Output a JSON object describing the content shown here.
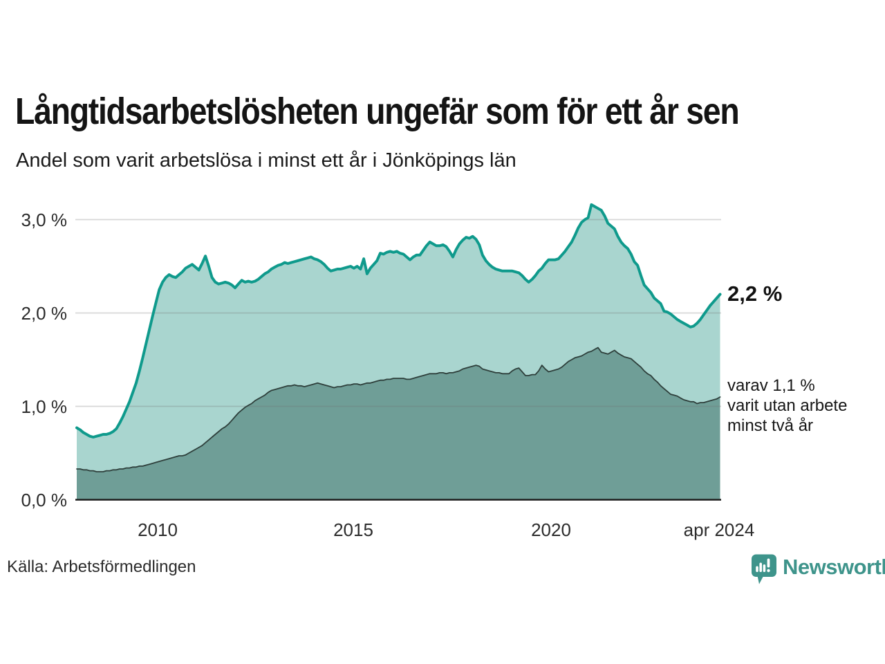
{
  "header": {
    "title": "Långtidsarbetslösheten ungefär som för ett år sen",
    "subtitle": "Andel som varit arbetslösa i minst ett år i Jönköpings län"
  },
  "axes": {
    "y_tick_labels": [
      "3,0 %",
      "2,0 %",
      "1,0 %",
      "0,0 %"
    ],
    "x_tick_labels": [
      "2010",
      "2015",
      "2020",
      "apr 2024"
    ]
  },
  "annotations": {
    "latest_total": "2,2 %",
    "two_year_line1": "varav 1,1 %",
    "two_year_line2": "varit utan arbete",
    "two_year_line3": "minst två år"
  },
  "footer": {
    "source": "Källa: Arbetsförmedlingen",
    "brand": "Newsworthy"
  },
  "colors": {
    "total_line": "#0f9a8c",
    "total_fill": "#a9d5cf",
    "two_year_line": "#2e3f3b",
    "two_year_fill": "#6f9e97",
    "grid_line": "rgba(110,110,110,0.28)",
    "axis_line": "#1f1f1f",
    "brand_teal": "#3e948b"
  },
  "chart_data": {
    "type": "area",
    "variant": "overlapping",
    "title": "Långtidsarbetslösheten ungefär som för ett år sen",
    "subtitle": "Andel som varit arbetslösa i minst ett år i Jönköpings län",
    "source": "Källa: Arbetsförmedlingen",
    "unit": "%",
    "frequency": "monthly",
    "x_range": {
      "start": "2008-01",
      "end": "2024-04"
    },
    "x_tick_labels": [
      "2010",
      "2015",
      "2020",
      "apr 2024"
    ],
    "y_tick_values": [
      0,
      1,
      2,
      3
    ],
    "y_tick_labels": [
      "0,0 %",
      "1,0 %",
      "2,0 %",
      "3,0 %"
    ],
    "ylim": [
      0,
      3.3
    ],
    "grid": "horizontal",
    "legend_position": "none",
    "annotations": [
      {
        "text": "2,2 %",
        "series": "minst ett år",
        "x": "2024-04"
      },
      {
        "text": "varav 1,1 % varit utan arbete minst två år",
        "series": "minst två år",
        "x": "2024-04"
      }
    ],
    "series": [
      {
        "name": "Andel arbetslösa minst ett år",
        "latest_value": 2.2,
        "values": [
          0.77,
          0.75,
          0.72,
          0.7,
          0.68,
          0.67,
          0.68,
          0.69,
          0.7,
          0.7,
          0.71,
          0.73,
          0.76,
          0.82,
          0.89,
          0.97,
          1.05,
          1.15,
          1.25,
          1.38,
          1.52,
          1.67,
          1.82,
          1.97,
          2.11,
          2.25,
          2.33,
          2.38,
          2.41,
          2.39,
          2.38,
          2.41,
          2.44,
          2.48,
          2.5,
          2.52,
          2.49,
          2.46,
          2.53,
          2.61,
          2.5,
          2.38,
          2.33,
          2.31,
          2.32,
          2.33,
          2.32,
          2.3,
          2.27,
          2.31,
          2.35,
          2.33,
          2.34,
          2.33,
          2.34,
          2.36,
          2.39,
          2.42,
          2.44,
          2.47,
          2.49,
          2.51,
          2.52,
          2.54,
          2.53,
          2.54,
          2.55,
          2.56,
          2.57,
          2.58,
          2.59,
          2.6,
          2.58,
          2.57,
          2.55,
          2.52,
          2.48,
          2.45,
          2.46,
          2.47,
          2.47,
          2.48,
          2.49,
          2.5,
          2.48,
          2.5,
          2.47,
          2.58,
          2.42,
          2.48,
          2.52,
          2.56,
          2.64,
          2.63,
          2.65,
          2.66,
          2.65,
          2.66,
          2.64,
          2.63,
          2.6,
          2.57,
          2.6,
          2.62,
          2.62,
          2.67,
          2.72,
          2.76,
          2.74,
          2.72,
          2.72,
          2.73,
          2.71,
          2.66,
          2.6,
          2.68,
          2.74,
          2.78,
          2.81,
          2.8,
          2.82,
          2.79,
          2.73,
          2.62,
          2.56,
          2.52,
          2.49,
          2.47,
          2.46,
          2.45,
          2.45,
          2.45,
          2.45,
          2.44,
          2.43,
          2.4,
          2.36,
          2.33,
          2.36,
          2.4,
          2.45,
          2.48,
          2.53,
          2.57,
          2.57,
          2.57,
          2.58,
          2.62,
          2.66,
          2.71,
          2.76,
          2.83,
          2.91,
          2.97,
          3.0,
          3.02,
          3.16,
          3.14,
          3.12,
          3.1,
          3.04,
          2.96,
          2.93,
          2.9,
          2.82,
          2.76,
          2.72,
          2.69,
          2.63,
          2.55,
          2.51,
          2.4,
          2.3,
          2.26,
          2.22,
          2.16,
          2.13,
          2.1,
          2.02,
          2.01,
          1.99,
          1.96,
          1.93,
          1.91,
          1.89,
          1.87,
          1.85,
          1.86,
          1.89,
          1.93,
          1.98,
          2.03,
          2.08,
          2.12,
          2.16,
          2.2
        ]
      },
      {
        "name": "varav arbetslösa minst två år",
        "latest_value": 1.1,
        "values": [
          0.33,
          0.33,
          0.32,
          0.32,
          0.31,
          0.31,
          0.3,
          0.3,
          0.3,
          0.31,
          0.31,
          0.32,
          0.32,
          0.33,
          0.33,
          0.34,
          0.34,
          0.35,
          0.35,
          0.36,
          0.36,
          0.37,
          0.38,
          0.39,
          0.4,
          0.41,
          0.42,
          0.43,
          0.44,
          0.45,
          0.46,
          0.47,
          0.47,
          0.48,
          0.5,
          0.52,
          0.54,
          0.56,
          0.58,
          0.61,
          0.64,
          0.67,
          0.7,
          0.73,
          0.76,
          0.78,
          0.81,
          0.85,
          0.89,
          0.93,
          0.96,
          0.99,
          1.01,
          1.03,
          1.06,
          1.08,
          1.1,
          1.12,
          1.15,
          1.17,
          1.18,
          1.19,
          1.2,
          1.21,
          1.22,
          1.22,
          1.23,
          1.22,
          1.22,
          1.21,
          1.22,
          1.23,
          1.24,
          1.25,
          1.24,
          1.23,
          1.22,
          1.21,
          1.2,
          1.21,
          1.21,
          1.22,
          1.23,
          1.23,
          1.24,
          1.24,
          1.23,
          1.24,
          1.25,
          1.25,
          1.26,
          1.27,
          1.28,
          1.28,
          1.29,
          1.29,
          1.3,
          1.3,
          1.3,
          1.3,
          1.29,
          1.29,
          1.3,
          1.31,
          1.32,
          1.33,
          1.34,
          1.35,
          1.35,
          1.35,
          1.36,
          1.36,
          1.35,
          1.36,
          1.36,
          1.37,
          1.38,
          1.4,
          1.41,
          1.42,
          1.43,
          1.44,
          1.43,
          1.4,
          1.39,
          1.38,
          1.37,
          1.36,
          1.36,
          1.35,
          1.35,
          1.35,
          1.38,
          1.4,
          1.41,
          1.37,
          1.33,
          1.33,
          1.34,
          1.34,
          1.38,
          1.44,
          1.4,
          1.37,
          1.38,
          1.39,
          1.4,
          1.42,
          1.45,
          1.48,
          1.5,
          1.52,
          1.53,
          1.54,
          1.56,
          1.58,
          1.59,
          1.61,
          1.63,
          1.58,
          1.57,
          1.56,
          1.58,
          1.6,
          1.57,
          1.55,
          1.53,
          1.52,
          1.51,
          1.48,
          1.45,
          1.42,
          1.38,
          1.35,
          1.33,
          1.29,
          1.26,
          1.22,
          1.19,
          1.16,
          1.13,
          1.12,
          1.11,
          1.09,
          1.07,
          1.06,
          1.05,
          1.05,
          1.03,
          1.04,
          1.04,
          1.05,
          1.06,
          1.07,
          1.08,
          1.1
        ]
      }
    ]
  }
}
